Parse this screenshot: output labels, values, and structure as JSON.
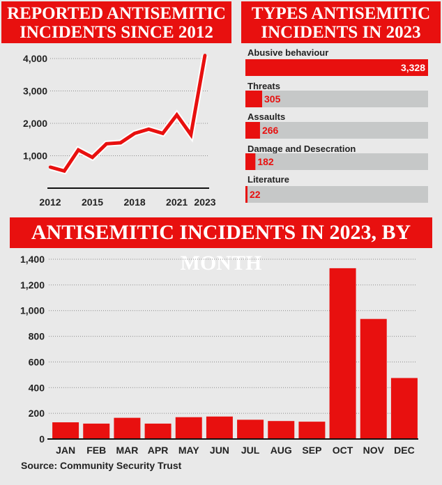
{
  "colors": {
    "accent": "#e8100f",
    "track": "#c6c8c8",
    "background": "#e9e9e9"
  },
  "source": "Source: Community Security Trust",
  "chart_data": [
    {
      "type": "line",
      "title": "REPORTED ANTISEMITIC INCIDENTS SINCE 2012",
      "x": [
        2012,
        2013,
        2014,
        2015,
        2016,
        2017,
        2018,
        2019,
        2020,
        2021,
        2022,
        2023
      ],
      "y": [
        650,
        530,
        1180,
        950,
        1370,
        1400,
        1690,
        1820,
        1690,
        2260,
        1650,
        4100
      ],
      "xticks": [
        "2012",
        "2015",
        "2018",
        "2021",
        "2023"
      ],
      "yticks": [
        "1,000",
        "2,000",
        "3,000",
        "4,000"
      ],
      "ylim": [
        0,
        4300
      ]
    },
    {
      "type": "bar",
      "title": "TYPES ANTISEMITIC INCIDENTS IN 2023",
      "categories": [
        "Abusive behaviour",
        "Threats",
        "Assaults",
        "Damage and Desecration",
        "Literature"
      ],
      "values": [
        3328,
        305,
        266,
        182,
        22
      ],
      "value_labels": [
        "3,328",
        "305",
        "266",
        "182",
        "22"
      ],
      "xlim": [
        0,
        3328
      ]
    },
    {
      "type": "bar",
      "title": "ANTISEMITIC INCIDENTS IN 2023, BY MONTH",
      "categories": [
        "JAN",
        "FEB",
        "MAR",
        "APR",
        "MAY",
        "JUN",
        "JUL",
        "AUG",
        "SEP",
        "OCT",
        "NOV",
        "DEC"
      ],
      "values": [
        130,
        120,
        165,
        120,
        170,
        175,
        150,
        140,
        135,
        1330,
        935,
        475
      ],
      "yticks": [
        "0",
        "200",
        "400",
        "600",
        "800",
        "1,000",
        "1,200",
        "1,400"
      ],
      "ylim": [
        0,
        1400
      ]
    }
  ]
}
